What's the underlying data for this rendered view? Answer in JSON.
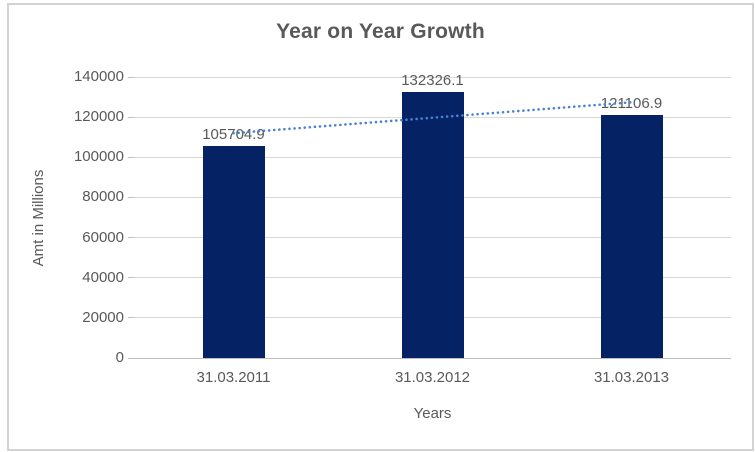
{
  "chart_data": {
    "type": "bar",
    "title": "Year on Year Growth",
    "xlabel": "Years",
    "ylabel": "Amt in Millions",
    "categories": [
      "31.03.2011",
      "31.03.2012",
      "31.03.2013"
    ],
    "values": [
      105704.9,
      132326.1,
      121106.9
    ],
    "data_labels": [
      "105704.9",
      "132326.1",
      "121106.9"
    ],
    "ylim": [
      0,
      140000
    ],
    "ytick_step": 20000,
    "yticks": [
      "0",
      "20000",
      "40000",
      "60000",
      "80000",
      "100000",
      "120000",
      "140000"
    ],
    "grid": true,
    "legend_position": "none",
    "trendline": {
      "type": "linear",
      "style": "dotted"
    }
  },
  "colors": {
    "bar": "#052364",
    "trendline": "#4a82d2",
    "gridline": "#d9d9d9",
    "axis_line": "#bfbfbf",
    "text": "#595959",
    "frame_border": "#d3d3d3",
    "background": "#ffffff"
  }
}
